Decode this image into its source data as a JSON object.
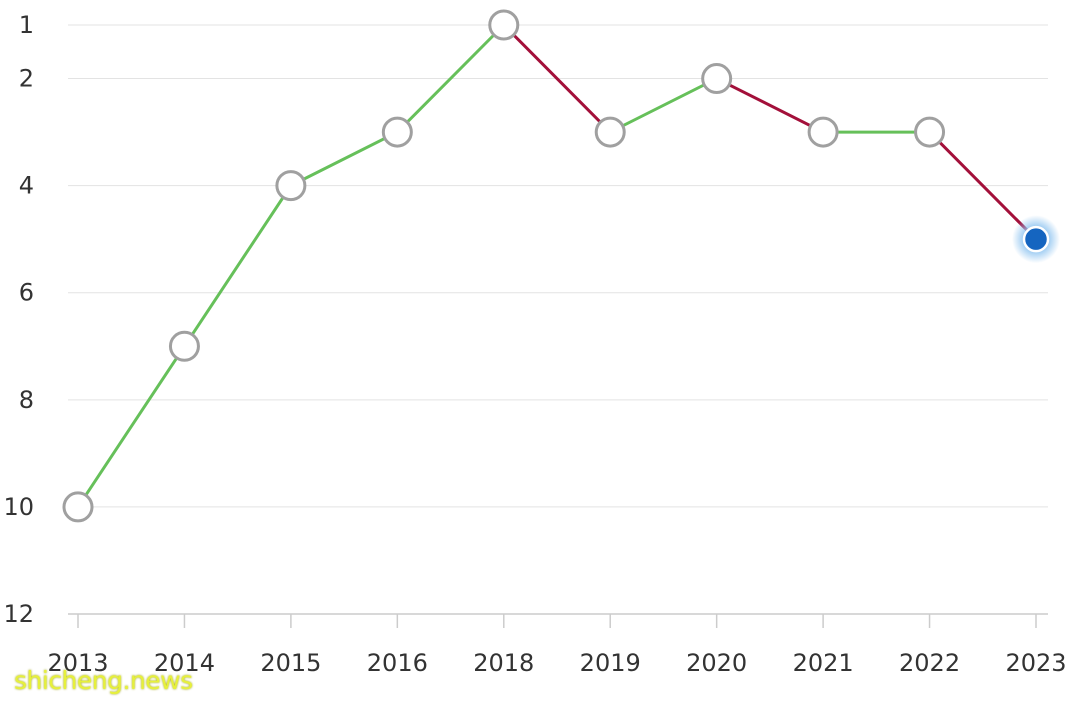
{
  "chart_data": {
    "type": "line",
    "title": "",
    "xlabel": "",
    "ylabel": "",
    "x": [
      "2013",
      "2014",
      "2015",
      "2016",
      "2018",
      "2019",
      "2020",
      "2021",
      "2022",
      "2023"
    ],
    "series": [
      {
        "values": [
          10,
          7,
          4,
          3,
          1,
          3,
          2,
          3,
          3,
          5
        ]
      }
    ],
    "y_axis": {
      "inverted": true,
      "range": [
        1,
        12
      ],
      "ticks": [
        1,
        2,
        4,
        6,
        8,
        10,
        12
      ]
    },
    "grid": true,
    "legend": "none",
    "colors": {
      "improve": "#66c05a",
      "decline": "#a3103a",
      "marker_stroke": "#a0a0a0",
      "marker_fill": "#ffffff",
      "highlight": "#1565c0"
    },
    "highlight_point": "2023"
  },
  "watermark": "shicheng.news"
}
